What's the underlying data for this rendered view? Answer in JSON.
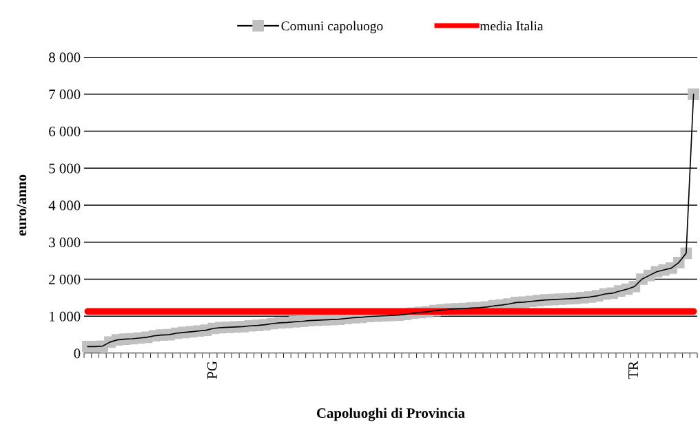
{
  "chart_data": {
    "type": "line",
    "xlabel": "Capoluoghi di Provincia",
    "ylabel": "euro/anno",
    "categories": [
      null,
      null,
      null,
      null,
      null,
      null,
      null,
      null,
      null,
      null,
      null,
      null,
      null,
      null,
      null,
      null,
      null,
      "PG",
      null,
      null,
      null,
      null,
      null,
      null,
      null,
      null,
      null,
      null,
      null,
      null,
      null,
      null,
      null,
      null,
      null,
      null,
      null,
      null,
      null,
      null,
      null,
      null,
      null,
      null,
      null,
      null,
      null,
      null,
      null,
      null,
      null,
      null,
      null,
      null,
      null,
      null,
      null,
      null,
      null,
      null,
      null,
      null,
      null,
      null,
      null,
      null,
      null,
      null,
      null,
      null,
      null,
      null,
      null,
      null,
      "TR",
      null,
      null,
      null,
      null,
      null,
      null,
      null,
      null
    ],
    "series": [
      {
        "name": "Comuni capoluogo",
        "color": "#c0c0c0",
        "marker": "square",
        "values": [
          180,
          180,
          190,
          300,
          360,
          380,
          390,
          410,
          430,
          470,
          490,
          500,
          540,
          560,
          580,
          600,
          620,
          670,
          690,
          700,
          710,
          720,
          740,
          750,
          770,
          800,
          820,
          830,
          850,
          860,
          880,
          890,
          900,
          910,
          920,
          940,
          960,
          970,
          990,
          1000,
          1010,
          1020,
          1030,
          1050,
          1080,
          1100,
          1120,
          1150,
          1170,
          1190,
          1200,
          1210,
          1220,
          1230,
          1250,
          1280,
          1300,
          1330,
          1370,
          1380,
          1400,
          1420,
          1440,
          1450,
          1460,
          1470,
          1480,
          1500,
          1520,
          1550,
          1600,
          1620,
          1680,
          1730,
          1800,
          2000,
          2100,
          2200,
          2250,
          2300,
          2450,
          2700,
          7000
        ]
      },
      {
        "name": "media Italia",
        "color": "#ff0000",
        "marker": "none",
        "values": [
          1130,
          1130,
          1130,
          1130,
          1130,
          1130,
          1130,
          1130,
          1130,
          1130,
          1130,
          1130,
          1130,
          1130,
          1130,
          1130,
          1130,
          1130,
          1130,
          1130,
          1130,
          1130,
          1130,
          1130,
          1130,
          1130,
          1130,
          1130,
          1130,
          1130,
          1130,
          1130,
          1130,
          1130,
          1130,
          1130,
          1130,
          1130,
          1130,
          1130,
          1130,
          1130,
          1130,
          1130,
          1130,
          1130,
          1130,
          1130,
          1130,
          1130,
          1130,
          1130,
          1130,
          1130,
          1130,
          1130,
          1130,
          1130,
          1130,
          1130,
          1130,
          1130,
          1130,
          1130,
          1130,
          1130,
          1130,
          1130,
          1130,
          1130,
          1130,
          1130,
          1130,
          1130,
          1130,
          1130,
          1130,
          1130,
          1130,
          1130,
          1130,
          1130,
          1130
        ]
      }
    ],
    "ylim": [
      0,
      8000
    ],
    "yticks": [
      0,
      {
        "value": 1000,
        "label": "1 000"
      },
      {
        "value": 2000,
        "label": "2 000"
      },
      {
        "value": 3000,
        "label": "3 000"
      },
      {
        "value": 4000,
        "label": "4 000"
      },
      {
        "value": 5000,
        "label": "5 000"
      },
      {
        "value": 6000,
        "label": "6 000"
      },
      {
        "value": 7000,
        "label": "7 000"
      },
      {
        "value": 8000,
        "label": "8 000"
      }
    ],
    "grid": "y",
    "legend": "top",
    "line_style": "solid"
  }
}
